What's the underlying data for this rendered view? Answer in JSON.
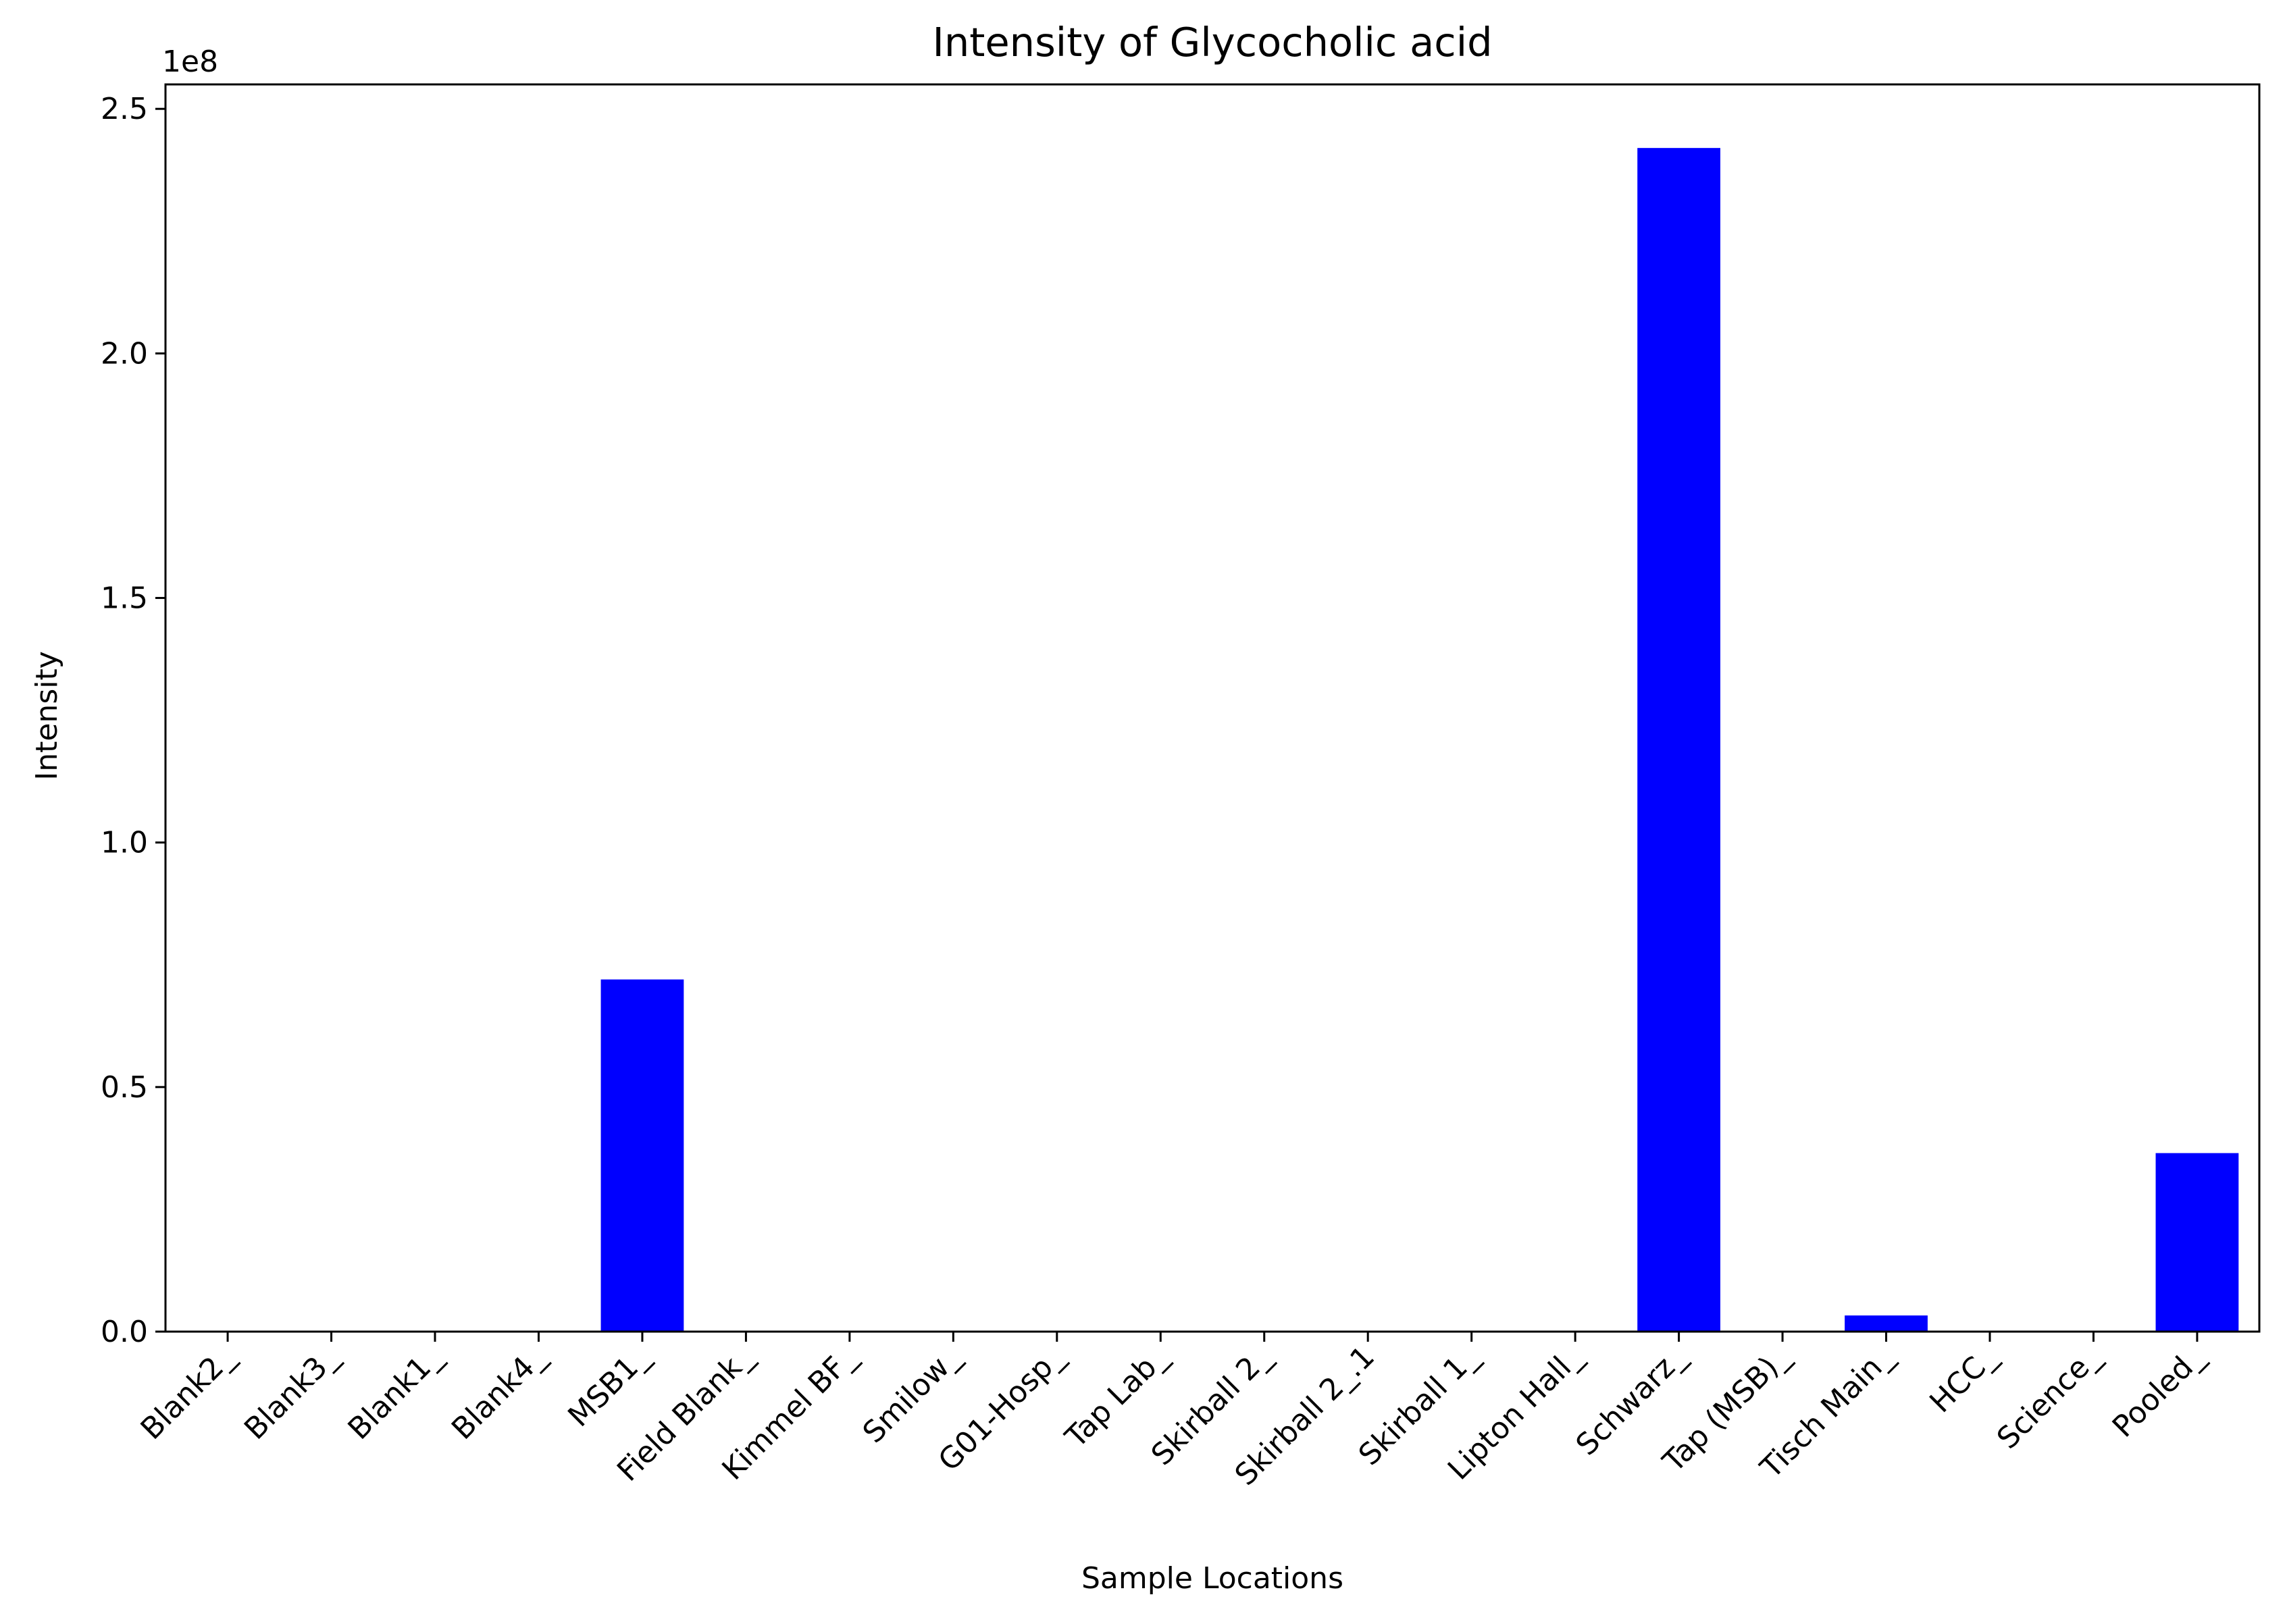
{
  "chart_data": {
    "type": "bar",
    "title": "Intensity of Glycocholic acid",
    "xlabel": "Sample Locations",
    "ylabel": "Intensity",
    "y_offset_text": "1e8",
    "categories": [
      "Blank2_",
      "Blank3_",
      "Blank1_",
      "Blank4_",
      "MSB1_",
      "Field Blank_",
      "Kimmel BF_",
      "Smilow_",
      "G01-Hosp_",
      "Tap Lab_",
      "Skirball 2_",
      "Skirball 2_.1",
      "Skirball 1_",
      "Lipton Hall_",
      "Schwarz_",
      "Tap (MSB)_",
      "Tisch Main_",
      "HCC_",
      "Science_",
      "Pooled_"
    ],
    "values": [
      0,
      0,
      0,
      0,
      72000000,
      0,
      0,
      0,
      0,
      0,
      0,
      0,
      0,
      0,
      242000000,
      0,
      3300000,
      0,
      0,
      36500000
    ],
    "ylim": [
      0,
      255000000
    ],
    "yticks": [
      0,
      50000000,
      100000000,
      150000000,
      200000000,
      250000000
    ],
    "ytick_labels": [
      "0.0",
      "0.5",
      "1.0",
      "1.5",
      "2.0",
      "2.5"
    ],
    "bar_color": "#0000ff",
    "grid": false,
    "legend": false
  }
}
